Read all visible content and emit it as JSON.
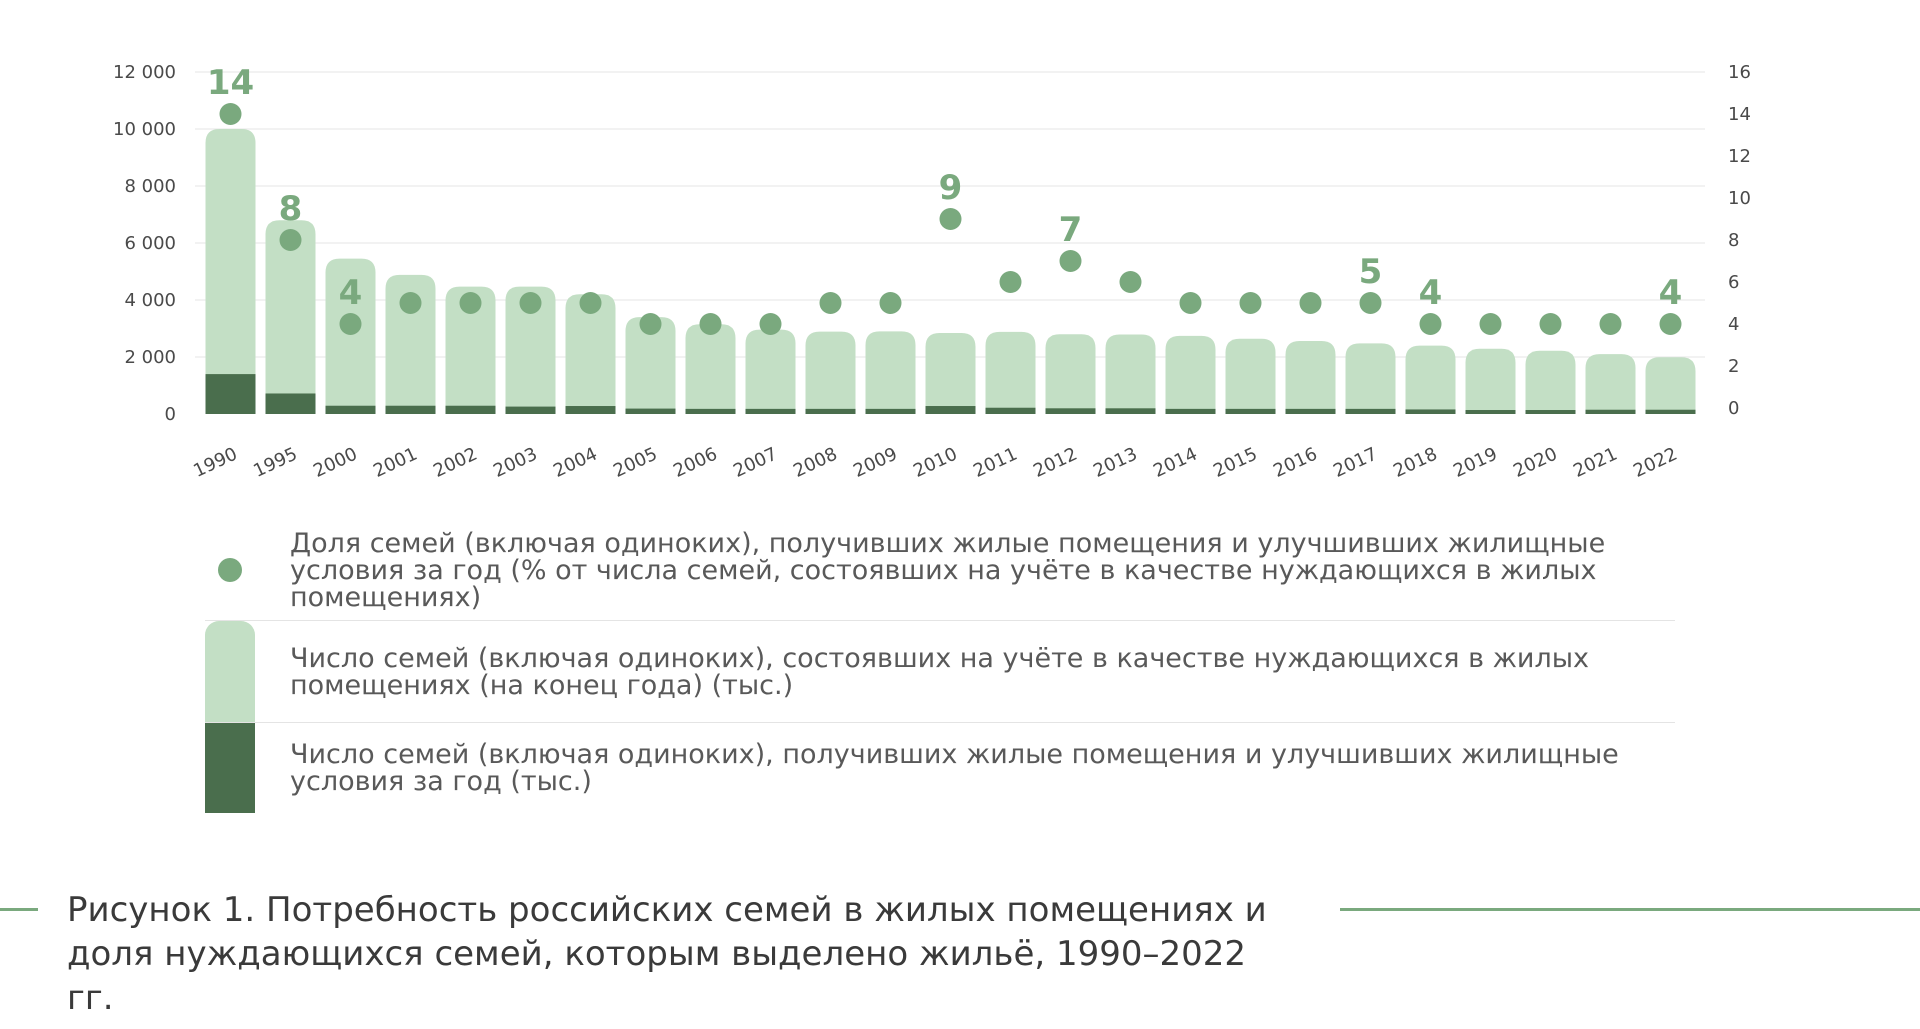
{
  "colors": {
    "light_bar": "#c3dfc5",
    "dark_bar": "#4a6e4d",
    "dot": "#7aa97e",
    "label": "#7aa97e",
    "grid": "#e6e6e6",
    "rule": "#7aa97e"
  },
  "chart_data": {
    "type": "bar",
    "categories": [
      "1990",
      "1995",
      "2000",
      "2001",
      "2002",
      "2003",
      "2004",
      "2005",
      "2006",
      "2007",
      "2008",
      "2009",
      "2010",
      "2011",
      "2012",
      "2013",
      "2014",
      "2015",
      "2016",
      "2017",
      "2018",
      "2019",
      "2020",
      "2021",
      "2022"
    ],
    "y_left": {
      "ylim": [
        0,
        12000
      ],
      "ticks": [
        0,
        2000,
        4000,
        6000,
        8000,
        10000,
        12000
      ],
      "tick_labels": [
        "0",
        "2 000",
        "4 000",
        "6 000",
        "8 000",
        "10 000",
        "12 000"
      ]
    },
    "y_right": {
      "ylim": [
        0,
        16
      ],
      "ticks": [
        0,
        2,
        4,
        6,
        8,
        10,
        12,
        14,
        16
      ],
      "tick_labels": [
        "0",
        "2",
        "4",
        "6",
        "8",
        "10",
        "12",
        "14",
        "16"
      ]
    },
    "grid": true,
    "series": [
      {
        "name": "Число семей (включая одиноких), состоявших на учёте в качестве нуждающихся в жилых помещениях (на конец года) (тыс.)",
        "type": "bar",
        "axis": "left",
        "values": [
          10000,
          6800,
          5450,
          4880,
          4470,
          4470,
          4200,
          3400,
          3150,
          2960,
          2890,
          2900,
          2840,
          2880,
          2800,
          2790,
          2740,
          2640,
          2560,
          2480,
          2400,
          2290,
          2220,
          2100,
          1990
        ]
      },
      {
        "name": "Число семей (включая одиноких), получивших жилые помещения и улучшивших жилищные условия за год (тыс.)",
        "type": "bar",
        "axis": "left",
        "values": [
          1400,
          720,
          290,
          290,
          290,
          260,
          280,
          190,
          180,
          180,
          180,
          180,
          280,
          220,
          200,
          200,
          180,
          180,
          180,
          180,
          160,
          140,
          140,
          150,
          150
        ]
      },
      {
        "name": "Доля семей (включая одиноких), получивших жилые помещения и улучшивших жилищные условия за год (% от числа семей, состоявших на учёте в качестве нуждающихся в жилых помещениях)",
        "type": "scatter",
        "axis": "right",
        "values": [
          14,
          8,
          4,
          5,
          5,
          5,
          5,
          4,
          4,
          4,
          5,
          5,
          9,
          6,
          7,
          6,
          5,
          5,
          5,
          5,
          4,
          4,
          4,
          4,
          4
        ],
        "data_labels": [
          "14",
          "8",
          "4",
          "",
          "",
          "",
          "",
          "",
          "",
          "",
          "",
          "",
          "9",
          "",
          "7",
          "",
          "",
          "",
          "",
          "5",
          "4",
          "",
          "",
          "",
          "4"
        ]
      }
    ],
    "legend_placement": "bottom"
  },
  "legend": [
    {
      "key": "dot",
      "text": "Доля семей (включая одиноких), получивших жилые помещения и улучшивших жилищные условия за год (% от числа семей, состоявших на учёте в качестве нуждающихся в жилых помещениях)"
    },
    {
      "key": "light",
      "text": "Число семей (включая одиноких), состоявших на учёте в качестве нуждающихся в жилых помещениях (на конец года) (тыс.)"
    },
    {
      "key": "dark",
      "text": "Число семей (включая одиноких), получивших жилые помещения и улучшивших жилищные условия за год (тыс.)"
    }
  ],
  "caption": "Рисунок 1. Потребность российских семей в жилых помещениях и доля нуждающихся семей, которым выделено жильё, 1990–2022 гг."
}
